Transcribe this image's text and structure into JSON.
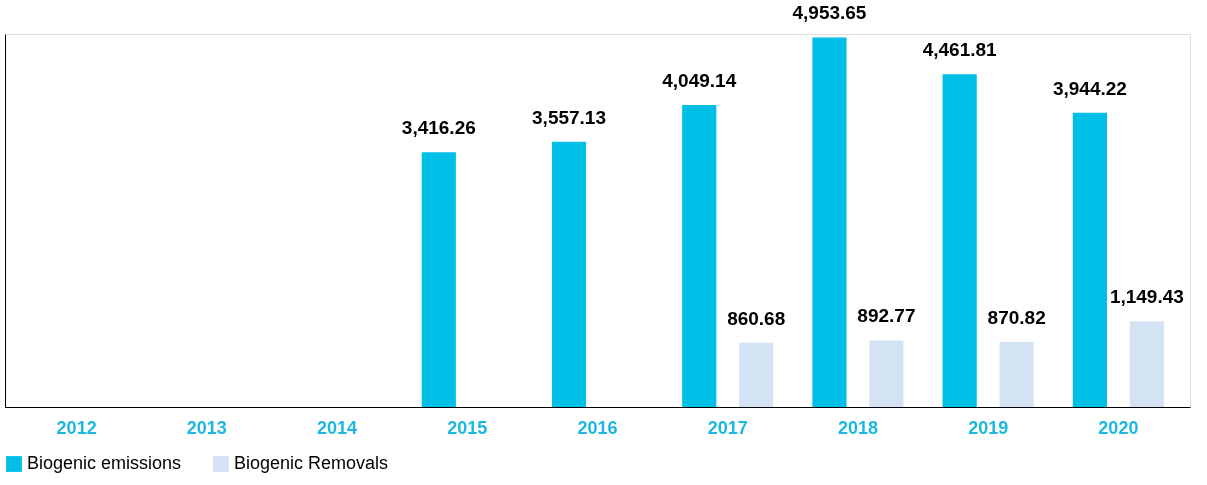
{
  "chart_data": {
    "type": "bar",
    "categories": [
      "2012",
      "2013",
      "2014",
      "2015",
      "2016",
      "2017",
      "2018",
      "2019",
      "2020"
    ],
    "series": [
      {
        "name": "Biogenic emissions",
        "color": "#00bfe6",
        "values": [
          null,
          null,
          null,
          3416.26,
          3557.13,
          4049.14,
          4953.65,
          4461.81,
          3944.22
        ],
        "value_labels": [
          null,
          null,
          null,
          "3,416.26",
          "3,557.13",
          "4,049.14",
          "4,953.65",
          "4,461.81",
          "3,944.22"
        ]
      },
      {
        "name": "Biogenic Removals",
        "color": "#d4e3f3",
        "values": [
          null,
          null,
          null,
          null,
          null,
          860.68,
          892.77,
          870.82,
          1149.43
        ],
        "value_labels": [
          null,
          null,
          null,
          null,
          null,
          "860.68",
          "892.77",
          "870.82",
          "1,149.43"
        ]
      }
    ],
    "legend": "bottom",
    "grid": false
  }
}
